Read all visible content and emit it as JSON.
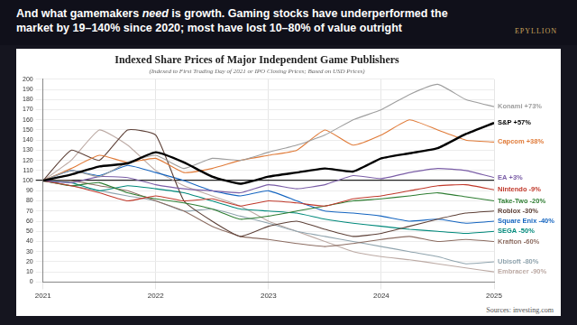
{
  "slide": {
    "headline": {
      "before": "And what gamemakers ",
      "emphasis": "need",
      "after": " is growth. Gaming stocks have underperformed the market by 19–140% since 2020; most have lost 10–80% of value outright"
    },
    "logo": "EPYLLION",
    "source": "Sources: investing.com"
  },
  "chart_data": {
    "type": "line",
    "title": "Indexed Share Prices of Major Independent Game Publishers",
    "subtitle": "(Indexed to First Trading Day of 2021 or IPO Closing Prices; Based on USD Prices)",
    "x": [
      2021,
      2021.25,
      2021.5,
      2021.75,
      2022,
      2022.25,
      2022.5,
      2022.75,
      2023,
      2023.25,
      2023.5,
      2023.75,
      2024,
      2024.25,
      2024.5,
      2024.75,
      2025
    ],
    "xlim": [
      2021,
      2025
    ],
    "xticks": [
      2021,
      2022,
      2023,
      2024,
      2025
    ],
    "ylim": [
      0,
      200
    ],
    "yticks": [
      0,
      10,
      20,
      30,
      40,
      50,
      60,
      70,
      80,
      90,
      100,
      110,
      120,
      130,
      140,
      150,
      160,
      170,
      180,
      190,
      200
    ],
    "grid": true,
    "marker": "none",
    "series": [
      {
        "name": "Konami +73%",
        "color": "#9e9e9e",
        "line_style": "solid",
        "values": [
          100,
          110,
          104,
          118,
          125,
          112,
          122,
          120,
          128,
          135,
          145,
          160,
          170,
          185,
          195,
          180,
          173
        ]
      },
      {
        "name": "S&P +57%",
        "color": "#000000",
        "line_style": "thick",
        "values": [
          100,
          106,
          114,
          117,
          128,
          118,
          104,
          97,
          104,
          108,
          112,
          109,
          122,
          127,
          132,
          146,
          157
        ]
      },
      {
        "name": "Capcom +38%",
        "color": "#e07b39",
        "line_style": "solid",
        "values": [
          100,
          112,
          125,
          118,
          122,
          108,
          112,
          120,
          125,
          130,
          150,
          135,
          145,
          160,
          150,
          140,
          138
        ]
      },
      {
        "name": "EA +3%",
        "color": "#7b5ea7",
        "line_style": "solid",
        "values": [
          100,
          98,
          104,
          103,
          96,
          92,
          90,
          88,
          96,
          92,
          96,
          105,
          102,
          108,
          112,
          110,
          103
        ]
      },
      {
        "name": "Nintendo -9%",
        "color": "#c0392b",
        "line_style": "solid",
        "values": [
          100,
          95,
          88,
          80,
          85,
          80,
          82,
          75,
          80,
          78,
          75,
          82,
          85,
          90,
          95,
          96,
          91
        ]
      },
      {
        "name": "Take-Two -20%",
        "color": "#2e7d32",
        "line_style": "solid",
        "values": [
          100,
          95,
          98,
          88,
          82,
          78,
          72,
          62,
          65,
          70,
          75,
          80,
          82,
          85,
          88,
          84,
          80
        ]
      },
      {
        "name": "Roblox -30%",
        "color": "#5d4037",
        "line_style": "solid",
        "values": [
          100,
          130,
          120,
          150,
          145,
          80,
          60,
          45,
          55,
          60,
          52,
          45,
          48,
          55,
          62,
          68,
          70
        ]
      },
      {
        "name": "Square Enix -40%",
        "color": "#1565c0",
        "line_style": "solid",
        "values": [
          100,
          110,
          105,
          115,
          108,
          100,
          90,
          85,
          90,
          80,
          70,
          68,
          65,
          60,
          62,
          58,
          60
        ]
      },
      {
        "name": "SEGA -50%",
        "color": "#00897b",
        "line_style": "solid",
        "values": [
          100,
          98,
          90,
          95,
          92,
          88,
          80,
          72,
          70,
          68,
          62,
          58,
          55,
          52,
          50,
          48,
          50
        ]
      },
      {
        "name": "Krafton -60%",
        "color": "#8d6e63",
        "line_style": "solid",
        "values": [
          100,
          100,
          95,
          90,
          80,
          70,
          55,
          45,
          42,
          38,
          35,
          38,
          42,
          45,
          40,
          42,
          40
        ]
      },
      {
        "name": "Ubisoft -80%",
        "color": "#90a4ae",
        "line_style": "solid",
        "values": [
          100,
          95,
          90,
          85,
          80,
          70,
          72,
          65,
          58,
          50,
          45,
          40,
          35,
          30,
          25,
          18,
          20
        ]
      },
      {
        "name": "Embracer -90%",
        "color": "#bcaaa4",
        "line_style": "solid",
        "values": [
          100,
          120,
          150,
          135,
          110,
          95,
          85,
          75,
          60,
          50,
          40,
          30,
          25,
          22,
          18,
          14,
          10
        ]
      }
    ]
  }
}
